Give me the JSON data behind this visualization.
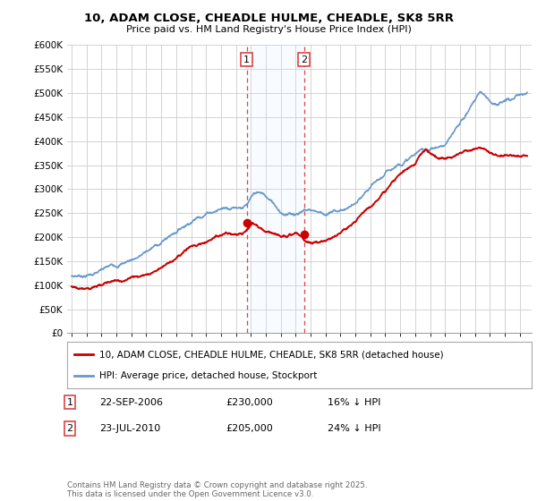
{
  "title": "10, ADAM CLOSE, CHEADLE HULME, CHEADLE, SK8 5RR",
  "subtitle": "Price paid vs. HM Land Registry's House Price Index (HPI)",
  "ylim": [
    0,
    600000
  ],
  "yticks": [
    0,
    50000,
    100000,
    150000,
    200000,
    250000,
    300000,
    350000,
    400000,
    450000,
    500000,
    550000,
    600000
  ],
  "ytick_labels": [
    "£0",
    "£50K",
    "£100K",
    "£150K",
    "£200K",
    "£250K",
    "£300K",
    "£350K",
    "£400K",
    "£450K",
    "£500K",
    "£550K",
    "£600K"
  ],
  "legend_line1": "10, ADAM CLOSE, CHEADLE HULME, CHEADLE, SK8 5RR (detached house)",
  "legend_line2": "HPI: Average price, detached house, Stockport",
  "sale1_label": "1",
  "sale1_date": "22-SEP-2006",
  "sale1_price": "£230,000",
  "sale1_hpi": "16% ↓ HPI",
  "sale1_x": 2006.72,
  "sale1_y": 230000,
  "sale2_label": "2",
  "sale2_date": "23-JUL-2010",
  "sale2_price": "£205,000",
  "sale2_hpi": "24% ↓ HPI",
  "sale2_x": 2010.55,
  "sale2_y": 205000,
  "footer": "Contains HM Land Registry data © Crown copyright and database right 2025.\nThis data is licensed under the Open Government Licence v3.0.",
  "line_color_red": "#cc0000",
  "line_color_blue": "#6699cc",
  "vspan_color": "#ddeeff",
  "vline_color": "#dd4444",
  "grid_color": "#cccccc",
  "bg_color": "#ffffff",
  "xmin": 1994.7,
  "xmax": 2025.8
}
